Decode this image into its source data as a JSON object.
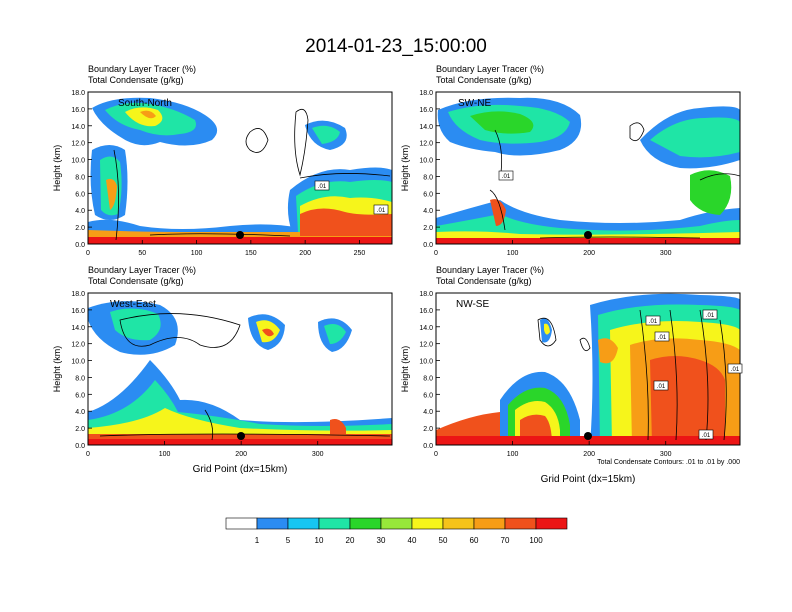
{
  "title": "2014-01-23_15:00:00",
  "panels": [
    {
      "id": "south-north",
      "heading1": "Boundary Layer Tracer   (%)",
      "heading2": "Total Condensate   (g/kg)",
      "label": "South-North",
      "x_ticks": [
        0,
        50,
        100,
        150,
        200,
        250
      ],
      "x_max": 280,
      "contour_labels": [
        ".01",
        ".01"
      ],
      "show_xlabel": false,
      "show_footnote": false
    },
    {
      "id": "sw-ne",
      "heading1": "Boundary Layer Tracer   (%)",
      "heading2": "Total Condensate   (g/kg)",
      "label": "SW-NE",
      "x_ticks": [
        0,
        100,
        200,
        300
      ],
      "x_max": 397,
      "contour_labels": [
        ".01"
      ],
      "show_xlabel": false,
      "show_footnote": false
    },
    {
      "id": "west-east",
      "heading1": "Boundary Layer Tracer   (%)",
      "heading2": "Total Condensate   (g/kg)",
      "label": "West-East",
      "x_ticks": [
        0,
        100,
        200,
        300
      ],
      "x_max": 397,
      "contour_labels": [],
      "show_xlabel": true,
      "show_footnote": false
    },
    {
      "id": "nw-se",
      "heading1": "Boundary Layer Tracer   (%)",
      "heading2": "Total Condensate   (g/kg)",
      "label": "NW-SE",
      "x_ticks": [
        0,
        100,
        200,
        300
      ],
      "x_max": 397,
      "contour_labels": [
        ".01",
        ".01",
        ".01",
        ".01",
        ".01",
        ".01"
      ],
      "show_xlabel": true,
      "show_footnote": true
    }
  ],
  "y_axis": {
    "label": "Height (km)",
    "ticks": [
      "0.0",
      "2.0",
      "4.0",
      "6.0",
      "8.0",
      "10.0",
      "12.0",
      "14.0",
      "16.0",
      "18.0"
    ],
    "min": 0,
    "max": 18
  },
  "x_axis_label": "Grid Point (dx=15km)",
  "footnote": "Total Condensate Contours: .01 to .01 by .000",
  "colorbar": {
    "colors": [
      "#ffffff",
      "#2b8cf2",
      "#17c6f2",
      "#1fe5a6",
      "#2ad62a",
      "#97e83a",
      "#f6f51b",
      "#f5c31a",
      "#f79d16",
      "#f0511c",
      "#ec1515"
    ],
    "labels": [
      "1",
      "5",
      "10",
      "20",
      "30",
      "40",
      "50",
      "60",
      "70",
      "100"
    ]
  },
  "chart_data": {
    "type": "heatmap",
    "title": "2014-01-23_15:00:00",
    "subplots": [
      "South-North",
      "SW-NE",
      "West-East",
      "NW-SE"
    ],
    "fill_variable": "Boundary Layer Tracer (%)",
    "contour_variable": "Total Condensate (g/kg)",
    "fill_levels": [
      1,
      5,
      10,
      20,
      30,
      40,
      50,
      60,
      70,
      100
    ],
    "contour_levels": [
      0.01
    ],
    "xlabel": "Grid Point (dx=15km)",
    "ylabel": "Height (km)",
    "ylim": [
      0,
      18
    ],
    "xlim": {
      "South-North": [
        0,
        280
      ],
      "SW-NE": [
        0,
        397
      ],
      "West-East": [
        0,
        397
      ],
      "NW-SE": [
        0,
        397
      ]
    },
    "marker_grid_point": {
      "South-North": 140,
      "SW-NE": 200,
      "West-East": 200,
      "NW-SE": 200
    }
  }
}
